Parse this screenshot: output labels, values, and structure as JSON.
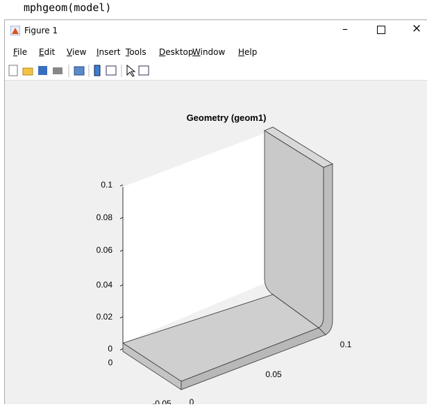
{
  "command": "mphgeom(model)",
  "window": {
    "title": "Figure 1",
    "menu": [
      "File",
      "Edit",
      "View",
      "Insert",
      "Tools",
      "Desktop",
      "Window",
      "Help"
    ]
  },
  "plot": {
    "title": "Geometry (geom1)",
    "z_ticks": [
      "0.1",
      "0.08",
      "0.06",
      "0.04",
      "0.02",
      "0"
    ],
    "x_ticks": [
      "0",
      "-0.05"
    ],
    "y_ticks": [
      "0",
      "0.05",
      "0.1"
    ]
  }
}
